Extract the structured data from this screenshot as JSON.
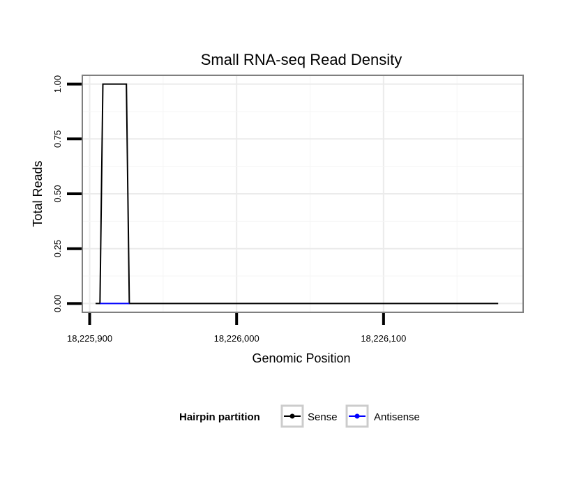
{
  "chart_data": {
    "type": "line",
    "title": "Small RNA-seq Read Density",
    "xlabel": "Genomic Position",
    "ylabel": "Total Reads",
    "xlim": [
      18225895,
      18226195
    ],
    "ylim": [
      -0.04,
      1.04
    ],
    "x_ticks": [
      18225900,
      18226000,
      18226100
    ],
    "x_tick_labels": [
      "18,225,900",
      "18,226,000",
      "18,226,100"
    ],
    "y_ticks": [
      0,
      0.25,
      0.5,
      0.75,
      1.0
    ],
    "y_tick_labels": [
      "0.00",
      "0.25",
      "0.50",
      "0.75",
      "1.00"
    ],
    "grid": true,
    "legend": {
      "title": "Hairpin partition",
      "position": "bottom"
    },
    "series": [
      {
        "name": "Sense",
        "color": "#000000",
        "x": [
          18225904,
          18225907,
          18225909,
          18225925,
          18225927,
          18226178
        ],
        "y": [
          0,
          0,
          1,
          1,
          0,
          0
        ]
      },
      {
        "name": "Antisense",
        "color": "#0000ff",
        "x": [
          18225907,
          18225927
        ],
        "y": [
          0,
          0
        ]
      }
    ]
  }
}
